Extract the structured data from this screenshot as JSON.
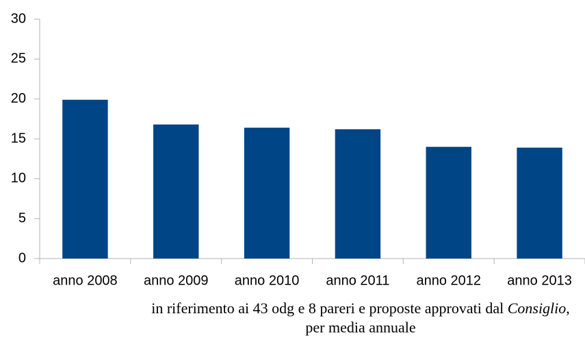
{
  "chart_data": {
    "type": "bar",
    "categories": [
      "anno 2008",
      "anno 2009",
      "anno 2010",
      "anno 2011",
      "anno 2012",
      "anno 2013"
    ],
    "values": [
      19.9,
      16.8,
      16.4,
      16.2,
      14.0,
      13.9
    ],
    "color": "#004586",
    "ylim": [
      0,
      30
    ],
    "yticks": [
      0,
      5,
      10,
      15,
      20,
      25,
      30
    ],
    "grid": false,
    "caption": {
      "line1": [
        "in riferimento ai 43 odg e 8 pareri e proposte approvati dal ",
        "Consiglio",
        ","
      ],
      "line2": "per media annuale"
    }
  }
}
